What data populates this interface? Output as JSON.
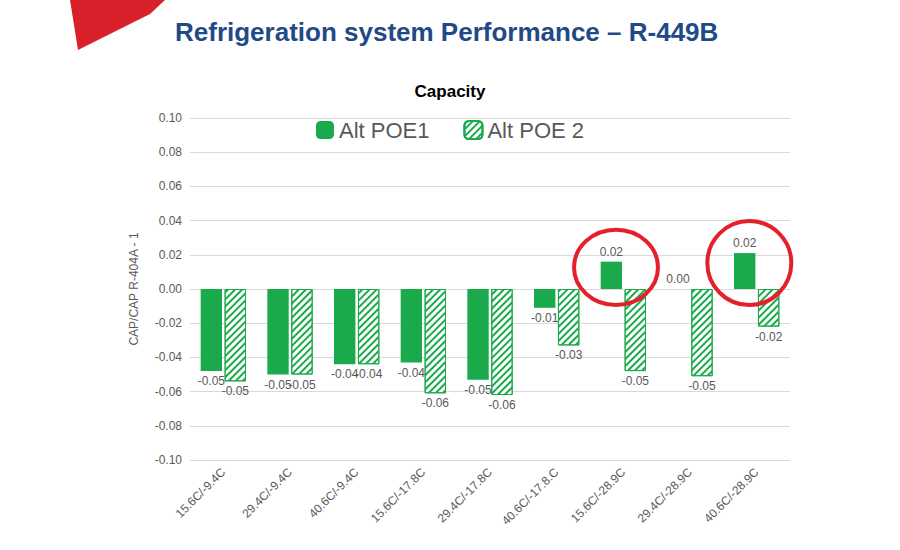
{
  "chart_data": {
    "type": "bar",
    "title": "Refrigeration system Performance – R-449B",
    "subtitle": "Capacity",
    "y_label": "CAP/CAP R-404A - 1",
    "categories": [
      "15.6C/-9.4C",
      "29.4C/-9.4C",
      "40.6C/-9.4C",
      "15.6C/-17.8C",
      "29.4C/-17.8C",
      "40.6C/-17.8.C",
      "15.6C/-28.9C",
      "29.4C/-28.9C",
      "40.6C/-28.9C"
    ],
    "series": [
      {
        "name": "Alt POE1",
        "color": "#1aaa4b",
        "values": [
          -0.048,
          -0.05,
          -0.044,
          -0.043,
          -0.053,
          -0.011,
          0.016,
          0.0,
          0.021
        ],
        "value_labels": [
          "-0.05",
          "-0.05",
          "-0.04",
          "-0.04",
          "-0.05",
          "-0.01",
          "0.02",
          "0.00",
          "0.02"
        ]
      },
      {
        "name": "Alt POE 2",
        "color": "#1aaa4b",
        "values": [
          -0.054,
          -0.05,
          -0.044,
          -0.061,
          -0.062,
          -0.033,
          -0.048,
          -0.051,
          -0.022
        ],
        "value_labels": [
          "-0.05",
          "-0.05",
          "-0.04",
          "-0.06",
          "-0.06",
          "-0.03",
          "-0.05",
          "-0.05",
          "-0.02"
        ]
      }
    ],
    "ylim": [
      -0.1,
      0.1
    ],
    "yticks": [
      {
        "value": -0.1,
        "label": "-0.10"
      },
      -0.08,
      -0.06,
      -0.04,
      -0.02,
      {
        "value": 0,
        "label": "0.00"
      },
      0.02,
      0.04,
      0.06,
      0.08,
      {
        "value": 0.1,
        "label": "0.10"
      }
    ],
    "grid": true,
    "legend": "top",
    "data_labels": true
  }
}
